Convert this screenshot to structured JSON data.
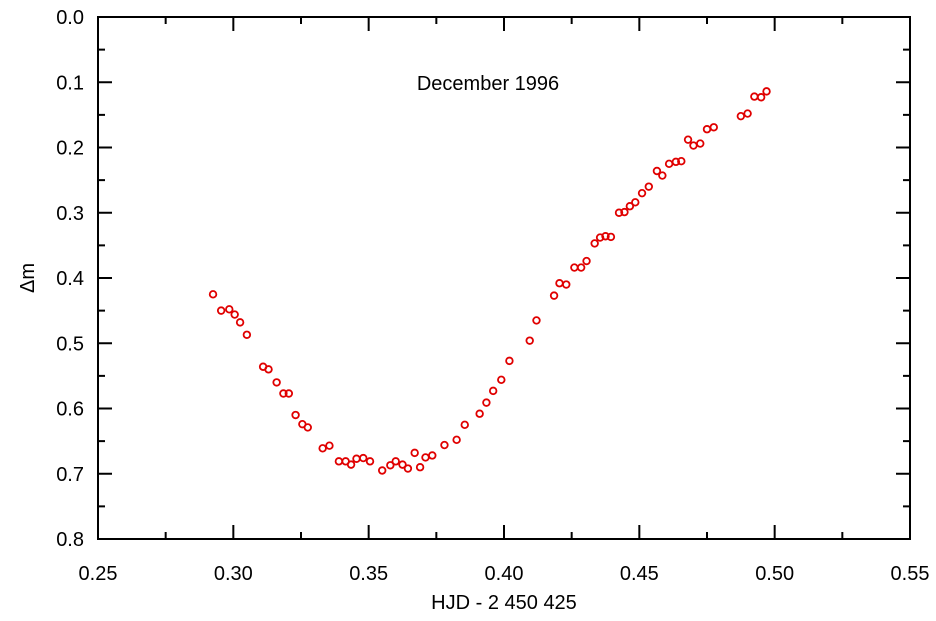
{
  "chart_data": {
    "type": "scatter",
    "title": "",
    "annotation": "December 1996",
    "xlabel": "HJD - 2 450 425",
    "ylabel": "Δm",
    "xlim": [
      0.25,
      0.55
    ],
    "ylim": [
      0.8,
      0.0
    ],
    "y_inverted": true,
    "xticks": [
      "0.25",
      "0.30",
      "0.35",
      "0.40",
      "0.45",
      "0.50",
      "0.55"
    ],
    "yticks": [
      "0.0",
      "0.1",
      "0.2",
      "0.3",
      "0.4",
      "0.5",
      "0.6",
      "0.7",
      "0.8"
    ],
    "grid": false,
    "marker": "open-circle",
    "marker_color": "#e00000",
    "points": [
      [
        0.2925,
        0.425
      ],
      [
        0.2955,
        0.45
      ],
      [
        0.2985,
        0.448
      ],
      [
        0.3005,
        0.456
      ],
      [
        0.3025,
        0.468
      ],
      [
        0.305,
        0.487
      ],
      [
        0.311,
        0.536
      ],
      [
        0.313,
        0.54
      ],
      [
        0.316,
        0.56
      ],
      [
        0.3185,
        0.577
      ],
      [
        0.3205,
        0.577
      ],
      [
        0.323,
        0.61
      ],
      [
        0.3255,
        0.624
      ],
      [
        0.3275,
        0.629
      ],
      [
        0.333,
        0.661
      ],
      [
        0.3355,
        0.657
      ],
      [
        0.339,
        0.681
      ],
      [
        0.3415,
        0.681
      ],
      [
        0.3435,
        0.686
      ],
      [
        0.3455,
        0.677
      ],
      [
        0.348,
        0.676
      ],
      [
        0.3505,
        0.681
      ],
      [
        0.355,
        0.695
      ],
      [
        0.358,
        0.687
      ],
      [
        0.36,
        0.681
      ],
      [
        0.3625,
        0.686
      ],
      [
        0.3645,
        0.692
      ],
      [
        0.367,
        0.668
      ],
      [
        0.369,
        0.69
      ],
      [
        0.371,
        0.675
      ],
      [
        0.3735,
        0.672
      ],
      [
        0.378,
        0.656
      ],
      [
        0.3825,
        0.648
      ],
      [
        0.3855,
        0.625
      ],
      [
        0.391,
        0.608
      ],
      [
        0.3935,
        0.591
      ],
      [
        0.396,
        0.573
      ],
      [
        0.399,
        0.556
      ],
      [
        0.402,
        0.527
      ],
      [
        0.4095,
        0.496
      ],
      [
        0.412,
        0.465
      ],
      [
        0.4185,
        0.427
      ],
      [
        0.4205,
        0.408
      ],
      [
        0.423,
        0.41
      ],
      [
        0.426,
        0.384
      ],
      [
        0.4285,
        0.384
      ],
      [
        0.4305,
        0.374
      ],
      [
        0.4335,
        0.347
      ],
      [
        0.4355,
        0.338
      ],
      [
        0.4375,
        0.336
      ],
      [
        0.4395,
        0.337
      ],
      [
        0.4425,
        0.3
      ],
      [
        0.4445,
        0.299
      ],
      [
        0.4465,
        0.29
      ],
      [
        0.4485,
        0.284
      ],
      [
        0.451,
        0.27
      ],
      [
        0.4535,
        0.26
      ],
      [
        0.4565,
        0.236
      ],
      [
        0.4585,
        0.243
      ],
      [
        0.461,
        0.225
      ],
      [
        0.4635,
        0.222
      ],
      [
        0.4655,
        0.221
      ],
      [
        0.468,
        0.188
      ],
      [
        0.47,
        0.197
      ],
      [
        0.4725,
        0.194
      ],
      [
        0.475,
        0.172
      ],
      [
        0.4775,
        0.169
      ],
      [
        0.4875,
        0.152
      ],
      [
        0.49,
        0.148
      ],
      [
        0.4925,
        0.122
      ],
      [
        0.495,
        0.123
      ],
      [
        0.497,
        0.114
      ]
    ]
  }
}
